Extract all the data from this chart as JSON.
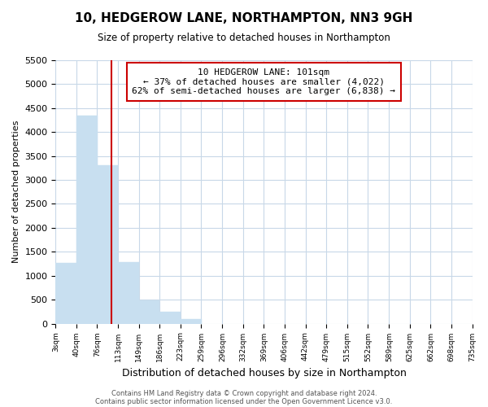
{
  "title": "10, HEDGEROW LANE, NORTHAMPTON, NN3 9GH",
  "subtitle": "Size of property relative to detached houses in Northampton",
  "xlabel": "Distribution of detached houses by size in Northampton",
  "ylabel": "Number of detached properties",
  "bar_color": "#c8dff0",
  "vline_x": 101,
  "vline_color": "#cc0000",
  "bins_left": [
    3,
    40,
    76,
    113,
    149,
    186,
    223,
    259,
    296,
    332,
    369,
    406,
    442,
    479,
    515,
    552,
    589,
    625,
    662,
    698
  ],
  "bin_width": 37,
  "bar_heights": [
    1270,
    4340,
    3300,
    1290,
    490,
    240,
    95,
    0,
    0,
    0,
    0,
    0,
    0,
    0,
    0,
    0,
    0,
    0,
    0,
    0
  ],
  "tick_labels": [
    "3sqm",
    "40sqm",
    "76sqm",
    "113sqm",
    "149sqm",
    "186sqm",
    "223sqm",
    "259sqm",
    "296sqm",
    "332sqm",
    "369sqm",
    "406sqm",
    "442sqm",
    "479sqm",
    "515sqm",
    "552sqm",
    "589sqm",
    "625sqm",
    "662sqm",
    "698sqm",
    "735sqm"
  ],
  "xlim_left": 3,
  "xlim_right": 735,
  "ylim": [
    0,
    5500
  ],
  "yticks": [
    0,
    500,
    1000,
    1500,
    2000,
    2500,
    3000,
    3500,
    4000,
    4500,
    5000,
    5500
  ],
  "annotation_title": "10 HEDGEROW LANE: 101sqm",
  "annotation_line1": "← 37% of detached houses are smaller (4,022)",
  "annotation_line2": "62% of semi-detached houses are larger (6,838) →",
  "annotation_box_color": "#ffffff",
  "annotation_box_edge": "#cc0000",
  "footer1": "Contains HM Land Registry data © Crown copyright and database right 2024.",
  "footer2": "Contains public sector information licensed under the Open Government Licence v3.0.",
  "background_color": "#ffffff",
  "grid_color": "#c8d8e8"
}
